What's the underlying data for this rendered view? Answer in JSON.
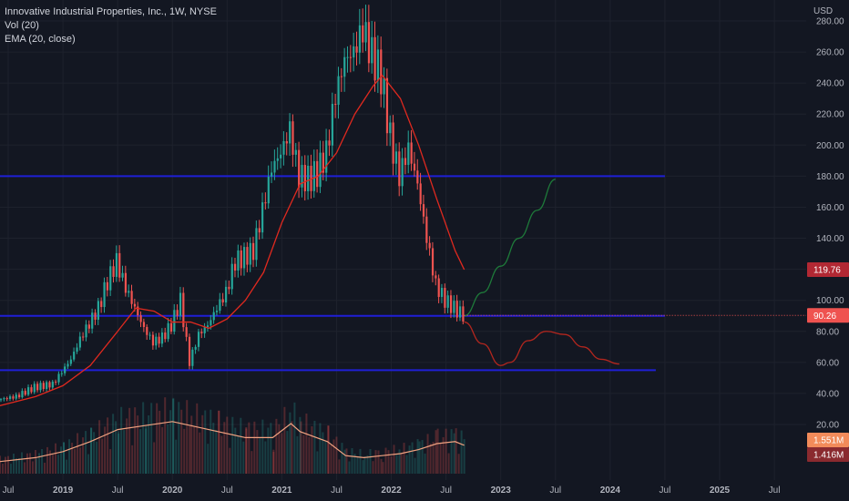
{
  "legend": {
    "symbol_line": "Innovative Industrial Properties, Inc., 1W, NYSE",
    "volume_line": "Vol (20)",
    "ema_line": "EMA (20, close)"
  },
  "currency": "USD",
  "badges": {
    "ema_value": "119.76",
    "last_price": "90.26",
    "volume_value": "1.551M",
    "volume_ma_value": "1.416M"
  },
  "colors": {
    "background": "#131722",
    "grid": "#1e222d",
    "up_candle": "#26a69a",
    "down_candle": "#ef5350",
    "ema": "#e0291f",
    "horizontal_lines": "#1f1fd6",
    "volume_ma": "#f2a280",
    "projection_up": "#1e7a3a",
    "projection_down": "#b3261e"
  },
  "chart_data": {
    "type": "candlestick",
    "x_axis": {
      "tick_labels": [
        "Jul",
        "2019",
        "Jul",
        "2020",
        "Jul",
        "2021",
        "Jul",
        "2022",
        "Jul",
        "2023",
        "Jul",
        "2024",
        "Jul",
        "2025",
        "Jul"
      ],
      "tick_dates": [
        "2018-07",
        "2019-01",
        "2019-07",
        "2020-01",
        "2020-07",
        "2021-01",
        "2021-07",
        "2022-01",
        "2022-07",
        "2023-01",
        "2023-07",
        "2024-01",
        "2024-07",
        "2025-01",
        "2025-07"
      ]
    },
    "y_axis": {
      "unit": "USD",
      "tick_labels": [
        "20.00",
        "40.00",
        "60.00",
        "80.00",
        "100.00",
        "120.00",
        "140.00",
        "160.00",
        "180.00",
        "200.00",
        "220.00",
        "240.00",
        "260.00",
        "280.00"
      ],
      "ylim": [
        12,
        288
      ]
    },
    "price_series": [
      {
        "date": "2018-06",
        "close": 36
      },
      {
        "date": "2018-08",
        "close": 38
      },
      {
        "date": "2018-10",
        "close": 44
      },
      {
        "date": "2018-12",
        "close": 46
      },
      {
        "date": "2019-02",
        "close": 62
      },
      {
        "date": "2019-03",
        "close": 75
      },
      {
        "date": "2019-04",
        "close": 85
      },
      {
        "date": "2019-05",
        "close": 95
      },
      {
        "date": "2019-06",
        "close": 112
      },
      {
        "date": "2019-07",
        "close": 125
      },
      {
        "date": "2019-08",
        "close": 108
      },
      {
        "date": "2019-09",
        "close": 95
      },
      {
        "date": "2019-10",
        "close": 82
      },
      {
        "date": "2019-11",
        "close": 73
      },
      {
        "date": "2019-12",
        "close": 76
      },
      {
        "date": "2020-01",
        "close": 84
      },
      {
        "date": "2020-02",
        "close": 100
      },
      {
        "date": "2020-03",
        "close": 60
      },
      {
        "date": "2020-04",
        "close": 78
      },
      {
        "date": "2020-05",
        "close": 84
      },
      {
        "date": "2020-06",
        "close": 95
      },
      {
        "date": "2020-07",
        "close": 105
      },
      {
        "date": "2020-08",
        "close": 125
      },
      {
        "date": "2020-09",
        "close": 128
      },
      {
        "date": "2020-10",
        "close": 132
      },
      {
        "date": "2020-11",
        "close": 158
      },
      {
        "date": "2020-12",
        "close": 185
      },
      {
        "date": "2021-01",
        "close": 195
      },
      {
        "date": "2021-02",
        "close": 210
      },
      {
        "date": "2021-03",
        "close": 180
      },
      {
        "date": "2021-04",
        "close": 178
      },
      {
        "date": "2021-05",
        "close": 182
      },
      {
        "date": "2021-06",
        "close": 195
      },
      {
        "date": "2021-07",
        "close": 232
      },
      {
        "date": "2021-08",
        "close": 255
      },
      {
        "date": "2021-09",
        "close": 260
      },
      {
        "date": "2021-10",
        "close": 275
      },
      {
        "date": "2021-11",
        "close": 258
      },
      {
        "date": "2021-12",
        "close": 245
      },
      {
        "date": "2022-01",
        "close": 205
      },
      {
        "date": "2022-02",
        "close": 180
      },
      {
        "date": "2022-03",
        "close": 198
      },
      {
        "date": "2022-04",
        "close": 175
      },
      {
        "date": "2022-05",
        "close": 140
      },
      {
        "date": "2022-06",
        "close": 110
      },
      {
        "date": "2022-07",
        "close": 100
      },
      {
        "date": "2022-08",
        "close": 95
      },
      {
        "date": "2022-09",
        "close": 90.26
      }
    ],
    "ema_series": [
      {
        "date": "2018-06",
        "value": 32
      },
      {
        "date": "2018-10",
        "value": 38
      },
      {
        "date": "2019-01",
        "value": 45
      },
      {
        "date": "2019-04",
        "value": 58
      },
      {
        "date": "2019-07",
        "value": 80
      },
      {
        "date": "2019-09",
        "value": 95
      },
      {
        "date": "2019-11",
        "value": 93
      },
      {
        "date": "2020-01",
        "value": 86
      },
      {
        "date": "2020-03",
        "value": 86
      },
      {
        "date": "2020-05",
        "value": 82
      },
      {
        "date": "2020-07",
        "value": 88
      },
      {
        "date": "2020-09",
        "value": 100
      },
      {
        "date": "2020-11",
        "value": 118
      },
      {
        "date": "2021-01",
        "value": 150
      },
      {
        "date": "2021-03",
        "value": 175
      },
      {
        "date": "2021-05",
        "value": 180
      },
      {
        "date": "2021-07",
        "value": 195
      },
      {
        "date": "2021-09",
        "value": 220
      },
      {
        "date": "2021-11",
        "value": 238
      },
      {
        "date": "2021-12",
        "value": 245
      },
      {
        "date": "2022-02",
        "value": 230
      },
      {
        "date": "2022-04",
        "value": 200
      },
      {
        "date": "2022-06",
        "value": 165
      },
      {
        "date": "2022-08",
        "value": 132
      },
      {
        "date": "2022-09",
        "value": 119.76
      }
    ],
    "horizontal_levels": [
      {
        "value": 180,
        "from": "2018-06",
        "to": "2024-07"
      },
      {
        "value": 90,
        "from": "2018-06",
        "to": "2024-07"
      },
      {
        "value": 55,
        "from": "2018-06",
        "to": "2024-06"
      }
    ],
    "projection_up": [
      {
        "date": "2022-09",
        "value": 90
      },
      {
        "date": "2022-11",
        "value": 105
      },
      {
        "date": "2023-01",
        "value": 122
      },
      {
        "date": "2023-03",
        "value": 140
      },
      {
        "date": "2023-05",
        "value": 158
      },
      {
        "date": "2023-07",
        "value": 178
      }
    ],
    "projection_down": [
      {
        "date": "2022-09",
        "value": 86
      },
      {
        "date": "2022-11",
        "value": 72
      },
      {
        "date": "2023-01",
        "value": 58
      },
      {
        "date": "2023-02",
        "value": 60
      },
      {
        "date": "2023-04",
        "value": 74
      },
      {
        "date": "2023-06",
        "value": 80
      },
      {
        "date": "2023-08",
        "value": 78
      },
      {
        "date": "2023-10",
        "value": 70
      },
      {
        "date": "2023-12",
        "value": 62
      },
      {
        "date": "2024-02",
        "value": 59
      }
    ],
    "volume_ma_series": [
      {
        "date": "2018-06",
        "value": 0.6
      },
      {
        "date": "2018-10",
        "value": 0.8
      },
      {
        "date": "2019-01",
        "value": 1.1
      },
      {
        "date": "2019-04",
        "value": 1.6
      },
      {
        "date": "2019-07",
        "value": 2.2
      },
      {
        "date": "2019-10",
        "value": 2.4
      },
      {
        "date": "2020-01",
        "value": 2.6
      },
      {
        "date": "2020-03",
        "value": 2.4
      },
      {
        "date": "2020-06",
        "value": 2.1
      },
      {
        "date": "2020-09",
        "value": 1.8
      },
      {
        "date": "2020-12",
        "value": 1.8
      },
      {
        "date": "2021-02",
        "value": 2.5
      },
      {
        "date": "2021-03",
        "value": 2.1
      },
      {
        "date": "2021-06",
        "value": 1.6
      },
      {
        "date": "2021-08",
        "value": 0.9
      },
      {
        "date": "2021-10",
        "value": 0.8
      },
      {
        "date": "2021-12",
        "value": 0.9
      },
      {
        "date": "2022-02",
        "value": 1.0
      },
      {
        "date": "2022-04",
        "value": 1.2
      },
      {
        "date": "2022-06",
        "value": 1.5
      },
      {
        "date": "2022-08",
        "value": 1.6
      },
      {
        "date": "2022-09",
        "value": 1.416
      }
    ]
  }
}
